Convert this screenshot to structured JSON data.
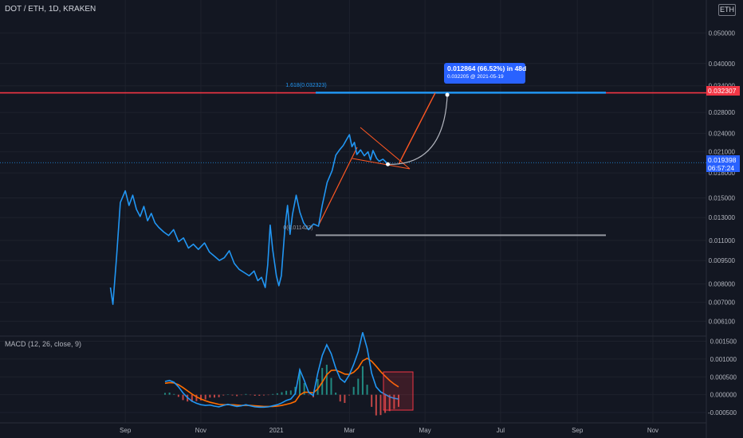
{
  "header": {
    "symbol": "DOT / ETH, 1D, KRAKEN",
    "currency": "ETH"
  },
  "colors": {
    "background": "#131722",
    "price_line": "#2196f3",
    "macd_line": "#2196f3",
    "signal_line": "#ff6d00",
    "resistance": "#f23645",
    "fib_level": "#2196f3",
    "support": "#9598a1",
    "hist_pos": "#26a69a",
    "hist_neg": "#ef5350",
    "trendline": "#ff5722"
  },
  "price_axis": {
    "ticks": [
      "0.050000",
      "0.040000",
      "0.034000",
      "0.028000",
      "0.024000",
      "0.021000",
      "0.018000",
      "0.015000",
      "0.013000",
      "0.011000",
      "0.009500",
      "0.008000",
      "0.007000",
      "0.006100"
    ]
  },
  "macd_axis": {
    "ticks": [
      "0.001500",
      "0.001000",
      "0.000500",
      "0.000000",
      "-0.000500"
    ]
  },
  "time_axis": {
    "labels": [
      "Sep",
      "Nov",
      "2021",
      "Mar",
      "May",
      "Jul",
      "Sep",
      "Nov"
    ]
  },
  "annotations": {
    "fib_top_label": "1.618(0.032323)",
    "fib_bottom_label": "0(0.011423)",
    "projection_line1": "0.012864 (66.52%) in 48d",
    "projection_line2": "0.032205 @ 2021-05-19",
    "resistance_price": "0.032307",
    "current_price": "0.019398",
    "countdown": "06:57:24"
  },
  "macd": {
    "title": "MACD (12, 26, close, 9)"
  },
  "chart_data": [
    {
      "type": "line",
      "title": "DOT / ETH, 1D, KRAKEN",
      "scale": "log",
      "ylim": [
        0.0057,
        0.06
      ],
      "series": [
        {
          "values": [
            [
              "2020-08-20",
              0.0078
            ],
            [
              "2020-08-22",
              0.0069
            ],
            [
              "2020-08-25",
              0.0098
            ],
            [
              "2020-08-28",
              0.0145
            ],
            [
              "2020-09-01",
              0.0158
            ],
            [
              "2020-09-04",
              0.0142
            ],
            [
              "2020-09-07",
              0.0153
            ],
            [
              "2020-09-10",
              0.0138
            ],
            [
              "2020-09-13",
              0.0131
            ],
            [
              "2020-09-16",
              0.0141
            ],
            [
              "2020-09-19",
              0.0127
            ],
            [
              "2020-09-22",
              0.0134
            ],
            [
              "2020-09-25",
              0.0125
            ],
            [
              "2020-09-28",
              0.0121
            ],
            [
              "2020-10-02",
              0.0117
            ],
            [
              "2020-10-06",
              0.0114
            ],
            [
              "2020-10-10",
              0.0119
            ],
            [
              "2020-10-14",
              0.0109
            ],
            [
              "2020-10-18",
              0.0112
            ],
            [
              "2020-10-22",
              0.0104
            ],
            [
              "2020-10-26",
              0.0107
            ],
            [
              "2020-10-30",
              0.0103
            ],
            [
              "2020-11-04",
              0.0108
            ],
            [
              "2020-11-08",
              0.0101
            ],
            [
              "2020-11-12",
              0.0098
            ],
            [
              "2020-11-16",
              0.0095
            ],
            [
              "2020-11-20",
              0.0097
            ],
            [
              "2020-11-24",
              0.0102
            ],
            [
              "2020-11-28",
              0.0093
            ],
            [
              "2020-12-02",
              0.0089
            ],
            [
              "2020-12-06",
              0.0087
            ],
            [
              "2020-12-10",
              0.0085
            ],
            [
              "2020-12-14",
              0.0088
            ],
            [
              "2020-12-17",
              0.0082
            ],
            [
              "2020-12-20",
              0.0084
            ],
            [
              "2020-12-23",
              0.0078
            ],
            [
              "2020-12-25",
              0.0092
            ],
            [
              "2020-12-27",
              0.0123
            ],
            [
              "2020-12-29",
              0.0103
            ],
            [
              "2021-01-01",
              0.0085
            ],
            [
              "2021-01-03",
              0.0079
            ],
            [
              "2021-01-05",
              0.0085
            ],
            [
              "2021-01-08",
              0.0122
            ],
            [
              "2021-01-10",
              0.0142
            ],
            [
              "2021-01-12",
              0.0115
            ],
            [
              "2021-01-14",
              0.0133
            ],
            [
              "2021-01-17",
              0.0153
            ],
            [
              "2021-01-20",
              0.0135
            ],
            [
              "2021-01-23",
              0.0125
            ],
            [
              "2021-01-27",
              0.0119
            ],
            [
              "2021-01-31",
              0.0124
            ],
            [
              "2021-02-04",
              0.0122
            ],
            [
              "2021-02-07",
              0.0142
            ],
            [
              "2021-02-11",
              0.0168
            ],
            [
              "2021-02-15",
              0.0183
            ],
            [
              "2021-02-18",
              0.0205
            ],
            [
              "2021-02-21",
              0.0213
            ],
            [
              "2021-02-24",
              0.022
            ],
            [
              "2021-02-27",
              0.0231
            ],
            [
              "2021-03-01",
              0.0238
            ],
            [
              "2021-03-03",
              0.0218
            ],
            [
              "2021-03-05",
              0.0225
            ],
            [
              "2021-03-07",
              0.0206
            ],
            [
              "2021-03-10",
              0.0213
            ],
            [
              "2021-03-13",
              0.0204
            ],
            [
              "2021-03-16",
              0.021
            ],
            [
              "2021-03-18",
              0.0198
            ],
            [
              "2021-03-20",
              0.0212
            ],
            [
              "2021-03-23",
              0.02
            ],
            [
              "2021-03-25",
              0.0196
            ],
            [
              "2021-03-28",
              0.0199
            ],
            [
              "2021-03-31",
              0.0194
            ]
          ]
        }
      ],
      "fib_levels": [
        {
          "label": "1.618(0.032323)",
          "value": 0.032323
        },
        {
          "label": "0(0.011423)",
          "value": 0.011423
        }
      ],
      "resistance": 0.032307,
      "current_price": 0.019398,
      "projection": {
        "from": [
          "2021-04-01",
          0.019398
        ],
        "to": [
          "2021-05-19",
          0.032205
        ],
        "change": 0.012864,
        "percent": 66.52,
        "days": 48
      },
      "xlim": [
        "2020-08-01",
        "2021-11-30"
      ]
    },
    {
      "type": "line",
      "title": "MACD (12, 26, close, 9)",
      "ylim": [
        -0.0007,
        0.0016
      ],
      "series": [
        {
          "values": [
            0.00037,
            0.0004,
            0.00035,
            0.00022,
            5e-05,
            -8e-05,
            -0.00018,
            -0.00024,
            -0.00028,
            -0.0003,
            -0.00029,
            -0.00032,
            -0.00034,
            -0.0003,
            -0.00027,
            -0.0003,
            -0.00033,
            -0.00031,
            -0.00028,
            -0.00031,
            -0.00034,
            -0.00035,
            -0.00035,
            -0.00034,
            -0.00031,
            -0.00028,
            -0.00023,
            -0.00016,
            -0.00012,
            3e-05,
            0.0007,
            0.0004,
            6e-05,
            -2e-05,
            0.0006,
            0.0011,
            0.0014,
            0.00115,
            0.00075,
            0.00045,
            0.00035,
            0.00055,
            0.00085,
            0.0012,
            0.00175,
            0.0013,
            0.0006,
            0.00022,
            8e-05,
            1e-05,
            -6e-05,
            -0.0001,
            -0.00012
          ]
        },
        {
          "values": [
            0.00032,
            0.00034,
            0.00033,
            0.00028,
            0.0002,
            0.00011,
            2e-05,
            -6e-05,
            -0.00012,
            -0.00017,
            -0.00021,
            -0.00024,
            -0.00027,
            -0.00028,
            -0.00028,
            -0.00028,
            -0.00029,
            -0.0003,
            -0.0003,
            -0.0003,
            -0.00031,
            -0.00032,
            -0.00033,
            -0.00033,
            -0.00033,
            -0.00032,
            -0.0003,
            -0.00027,
            -0.00024,
            -0.00019,
            -1e-05,
            7e-05,
            7e-05,
            5e-05,
            0.00016,
            0.00035,
            0.00056,
            0.00068,
            0.00069,
            0.00064,
            0.00058,
            0.00057,
            0.00063,
            0.00075,
            0.00095,
            0.00102,
            0.00094,
            0.0008,
            0.00065,
            0.00052,
            0.0004,
            0.0003,
            0.00022
          ]
        }
      ]
    }
  ]
}
